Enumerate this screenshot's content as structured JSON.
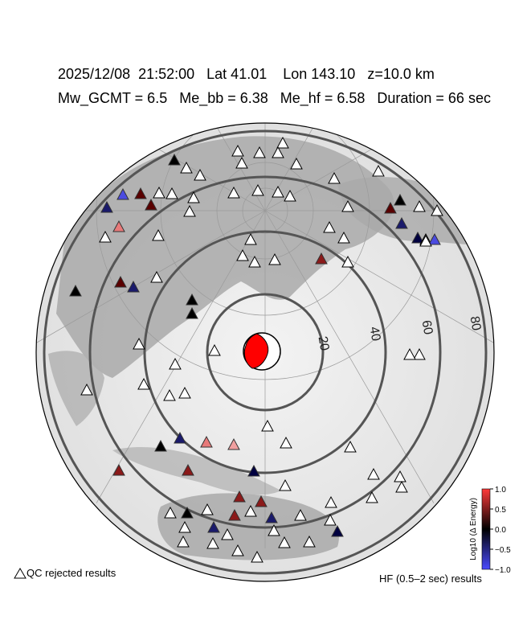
{
  "header": {
    "line1": "2025/12/08  21:52:00   Lat 41.01    Lon 143.10   z=10.0 km",
    "line2": "Mw_GCMT = 6.5   Me_bb = 6.38   Me_hf = 6.58   Duration = 66 sec"
  },
  "map": {
    "type": "azimuthal-equidistant",
    "epicenter": {
      "lat": 41.01,
      "lon": 143.1
    },
    "range_labels": [
      "20",
      "40",
      "60",
      "80"
    ],
    "beachball_color": "#ff0000"
  },
  "legend": {
    "qc_rejected": "QC rejected results",
    "hf_results": "HF (0.5–2 sec) results",
    "colorbar_label": "Log10 (Δ Energy)",
    "colorbar_ticks": [
      "1.0",
      "0.5",
      "0.0",
      "−0.5",
      "−1.0"
    ],
    "colors": {
      "high": "#ff3b3b",
      "mid": "#000000",
      "low": "#4a4aff"
    }
  }
}
